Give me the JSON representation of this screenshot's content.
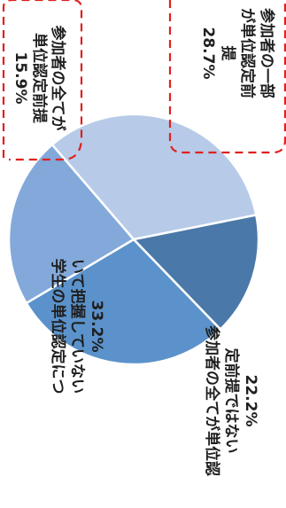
{
  "chart_data": {
    "type": "pie",
    "unit": "%",
    "slices": [
      {
        "label_lines": [
          "参加者の一部",
          "が単位認定前",
          "提"
        ],
        "value": 28.7,
        "value_label": "28.7%",
        "color": "#5b92cb"
      },
      {
        "label_lines": [
          "参加者の全てが単位認",
          "定前提ではない"
        ],
        "value": 22.2,
        "value_label": "22.2%",
        "color": "#82a9da"
      },
      {
        "label_lines": [
          "学生の単位認定につ",
          "いて把握していない"
        ],
        "value": 33.2,
        "value_label": "33.2%",
        "color": "#b7cbe8"
      },
      {
        "label_lines": [
          "参加者の全てが",
          "単位認定前提"
        ],
        "value": 15.9,
        "value_label": "15.9%",
        "color": "#4a78a8"
      }
    ],
    "callout_style": "red-dashed-box"
  }
}
